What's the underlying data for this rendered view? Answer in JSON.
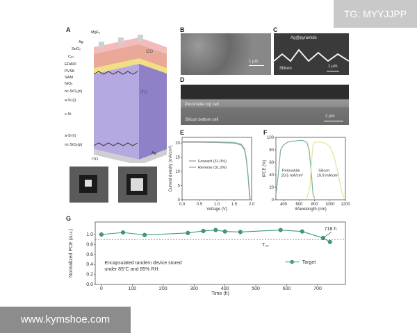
{
  "watermarks": {
    "top": "TG: MYYJJPP",
    "bottom": "www.kymshoe.com"
  },
  "panelA": {
    "letter": "A",
    "layers": [
      "MgF₂",
      "Ag",
      "SnO₂",
      "C₆₀",
      "EDADI",
      "PVSK",
      "SAM",
      "NiOₓ",
      "nc-SiOₓ(n)",
      "a-Si (i)",
      "c-Si",
      "a-Si (i)",
      "nc-SiOₓ(p)",
      "ITO",
      "Ag"
    ],
    "inner_labels": {
      "izo": "IZO",
      "ito_mid": "ITO",
      "ito_bottom": "ITO"
    },
    "colors": {
      "pvsk": "#e6a79c",
      "csi": "#a89ad6",
      "ito": "#f2e08a",
      "izo": "#f0b8b8"
    }
  },
  "panelB": {
    "letter": "B",
    "scale": "1 µm"
  },
  "panelC": {
    "letter": "C",
    "label_top": "Ag@pyramids",
    "label_bottom": "Silicon",
    "scale": "1 µm"
  },
  "panelD": {
    "letter": "D",
    "label_top": "Perovskite top cell",
    "label_bottom": "Silicon bottom cell",
    "scale": "2 µm"
  },
  "panelE": {
    "letter": "E"
  },
  "panelF": {
    "letter": "F"
  },
  "panelG": {
    "letter": "G"
  },
  "chart_data": [
    {
      "type": "line",
      "panel": "E",
      "xlabel": "Voltage (V)",
      "ylabel": "Current density (mA/cm²)",
      "xlim": [
        0,
        2.0
      ],
      "ylim": [
        0,
        22
      ],
      "xticks": [
        "0.0",
        "0.5",
        "1.0",
        "1.5",
        "2.0"
      ],
      "yticks": [
        "0",
        "5",
        "10",
        "15",
        "20"
      ],
      "series": [
        {
          "name": "Forward (31.0%)",
          "color": "#999999",
          "x": [
            0,
            0.5,
            1.0,
            1.5,
            1.7,
            1.8,
            1.85,
            1.9,
            1.95
          ],
          "y": [
            20.3,
            20.3,
            20.2,
            20.0,
            19.3,
            17.5,
            14,
            8,
            0
          ]
        },
        {
          "name": "Reverse (31.2%)",
          "color": "#7fb89a",
          "x": [
            0,
            0.5,
            1.0,
            1.5,
            1.7,
            1.8,
            1.85,
            1.9,
            1.96
          ],
          "y": [
            20.5,
            20.5,
            20.4,
            20.2,
            19.6,
            17.9,
            14.5,
            8.5,
            0
          ]
        }
      ]
    },
    {
      "type": "line",
      "panel": "F",
      "xlabel": "Wavelength (nm)",
      "ylabel": "IPCE (%)",
      "xlim": [
        300,
        1200
      ],
      "ylim": [
        0,
        100
      ],
      "xticks": [
        "400",
        "600",
        "800",
        "1000",
        "1200"
      ],
      "yticks": [
        "0",
        "20",
        "40",
        "60",
        "80",
        "100"
      ],
      "annotations": [
        {
          "text": "Perovskite",
          "sub": "20.5 mA/cm²"
        },
        {
          "text": "Silicon",
          "sub": "19.9 mA/cm²"
        }
      ],
      "series": [
        {
          "name": "Perovskite",
          "color": "#7fb89a",
          "x": [
            300,
            330,
            360,
            400,
            450,
            500,
            550,
            600,
            650,
            700,
            730,
            760,
            780,
            800
          ],
          "y": [
            8,
            40,
            80,
            88,
            92,
            94,
            94,
            95,
            95,
            92,
            80,
            40,
            10,
            2
          ]
        },
        {
          "name": "Silicon",
          "color": "#e8e4a0",
          "x": [
            700,
            740,
            760,
            780,
            800,
            850,
            900,
            950,
            1000,
            1050,
            1100,
            1150,
            1180
          ],
          "y": [
            2,
            20,
            60,
            88,
            92,
            93,
            92,
            90,
            85,
            70,
            45,
            15,
            3
          ]
        }
      ]
    },
    {
      "type": "line",
      "panel": "G",
      "xlabel": "Time (h)",
      "ylabel": "Normalized PCE (a.u.)",
      "xlim": [
        -20,
        790
      ],
      "ylim": [
        0,
        1.25
      ],
      "xticks": [
        "0",
        "100",
        "200",
        "300",
        "400",
        "500",
        "600",
        "700"
      ],
      "yticks": [
        "0.0",
        "0.2",
        "0.4",
        "0.6",
        "0.8",
        "1.0"
      ],
      "threshold": {
        "value": 0.9,
        "label": "T₉₀"
      },
      "annotation": {
        "text": "718 h"
      },
      "legend": "Target",
      "note": [
        "Encapsulated tandem device stored",
        "under 85°C and 85% RH"
      ],
      "series": [
        {
          "name": "Target",
          "color": "#3e9c74",
          "x": [
            0,
            70,
            140,
            280,
            330,
            370,
            400,
            450,
            580,
            650,
            718,
            740
          ],
          "y": [
            1.0,
            1.04,
            0.99,
            1.03,
            1.07,
            1.09,
            1.06,
            1.05,
            1.09,
            1.06,
            0.93,
            0.85
          ]
        }
      ]
    }
  ],
  "photos": {
    "left": "device-photo-front",
    "right": "device-photo-back"
  }
}
